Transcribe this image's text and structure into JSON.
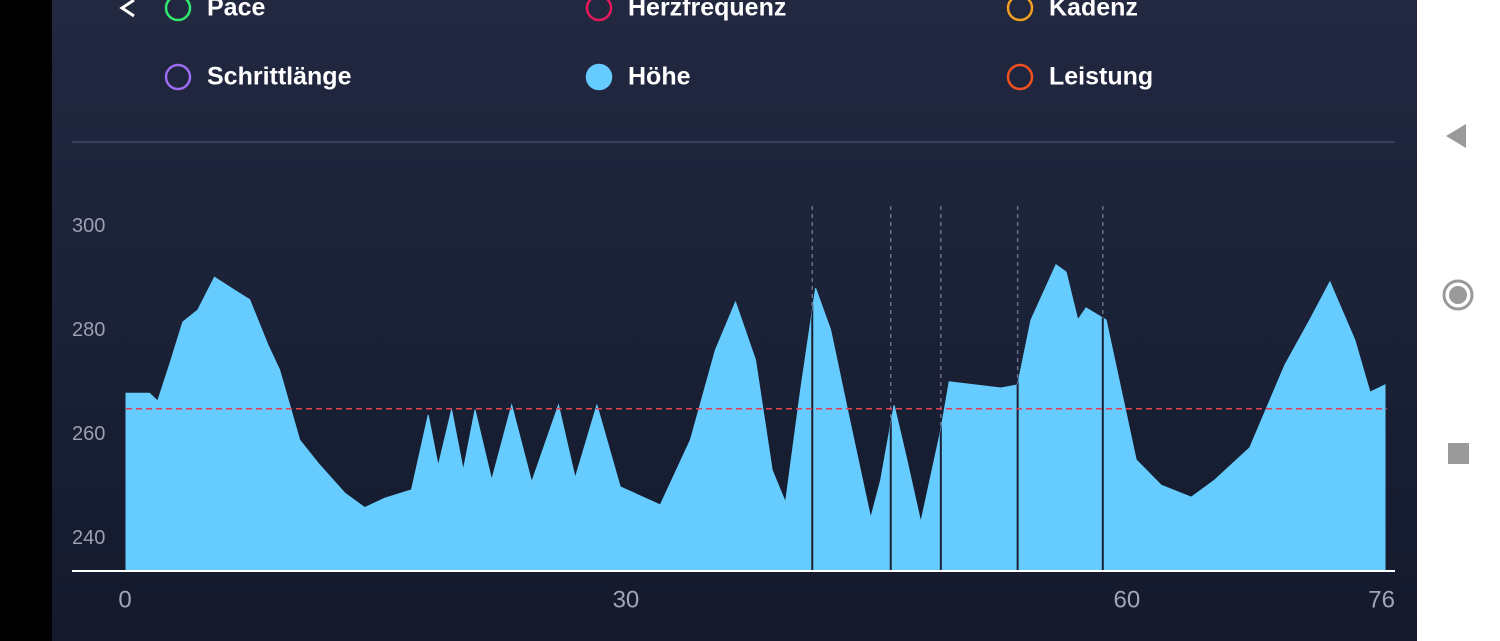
{
  "legend": [
    {
      "label": "Pace",
      "color": "#2fe86c",
      "filled": false
    },
    {
      "label": "Herzfrequenz",
      "color": "#e8185c",
      "filled": false
    },
    {
      "label": "Kadenz",
      "color": "#f0a020",
      "filled": false
    },
    {
      "label": "Schrittlänge",
      "color": "#9b6cf2",
      "filled": false
    },
    {
      "label": "Höhe",
      "color": "#66ccff",
      "filled": true
    },
    {
      "label": "Leistung",
      "color": "#f05022",
      "filled": false
    }
  ],
  "chart_data": {
    "type": "area",
    "color": "#66ccff",
    "x": [
      0,
      1.4,
      1.9,
      2.6,
      3.4,
      4.3,
      5.3,
      6.5,
      7.4,
      8.5,
      9.2,
      10.4,
      11.6,
      13.1,
      14.3,
      15.5,
      17.1,
      18.1,
      18.7,
      19.5,
      20.2,
      20.9,
      21.9,
      23.1,
      24.3,
      25.9,
      26.9,
      28.2,
      29.6,
      32,
      33.8,
      35.3,
      36.5,
      37.7,
      38.7,
      39.5,
      40.4,
      41.3,
      42.2,
      43.4,
      44.6,
      45.2,
      46,
      46.7,
      47.6,
      48.8,
      49.3,
      52.4,
      53.4,
      54.2,
      55.7,
      56.3,
      57,
      57.5,
      58.7,
      59.6,
      60.5,
      62,
      63.8,
      65.2,
      67.3,
      69.4,
      70.9,
      72.1,
      73.6,
      74.5,
      75.4
    ],
    "values": [
      268,
      268,
      266.5,
      273.4,
      281.7,
      284,
      290.3,
      287.8,
      286,
      277.3,
      272.5,
      259,
      254.2,
      248.8,
      246,
      247.8,
      249.4,
      263.8,
      254,
      264.8,
      253.2,
      264.8,
      251.3,
      265.7,
      250.9,
      265.7,
      251.7,
      265.7,
      250,
      246.5,
      259,
      276.3,
      285.5,
      274.4,
      253.2,
      247,
      268.6,
      288.2,
      280.2,
      261.9,
      244,
      251.3,
      265.7,
      256.1,
      243.2,
      260.9,
      270.2,
      269,
      269.6,
      282.1,
      292.7,
      291.3,
      282.1,
      284.4,
      282.1,
      268.6,
      255.2,
      250.3,
      248,
      251.3,
      257.5,
      273.4,
      282.1,
      289.4,
      278.2,
      268.2,
      269.6
    ],
    "xlim": [
      0,
      76
    ],
    "xticks": [
      0,
      30,
      60,
      76
    ],
    "ylim": [
      234,
      304
    ],
    "yticks": [
      240,
      260,
      280,
      300
    ],
    "reference_line": {
      "value": 265,
      "color": "#e04050"
    },
    "markers": [
      41.1,
      45.8,
      48.8,
      53.4,
      58.5
    ]
  }
}
